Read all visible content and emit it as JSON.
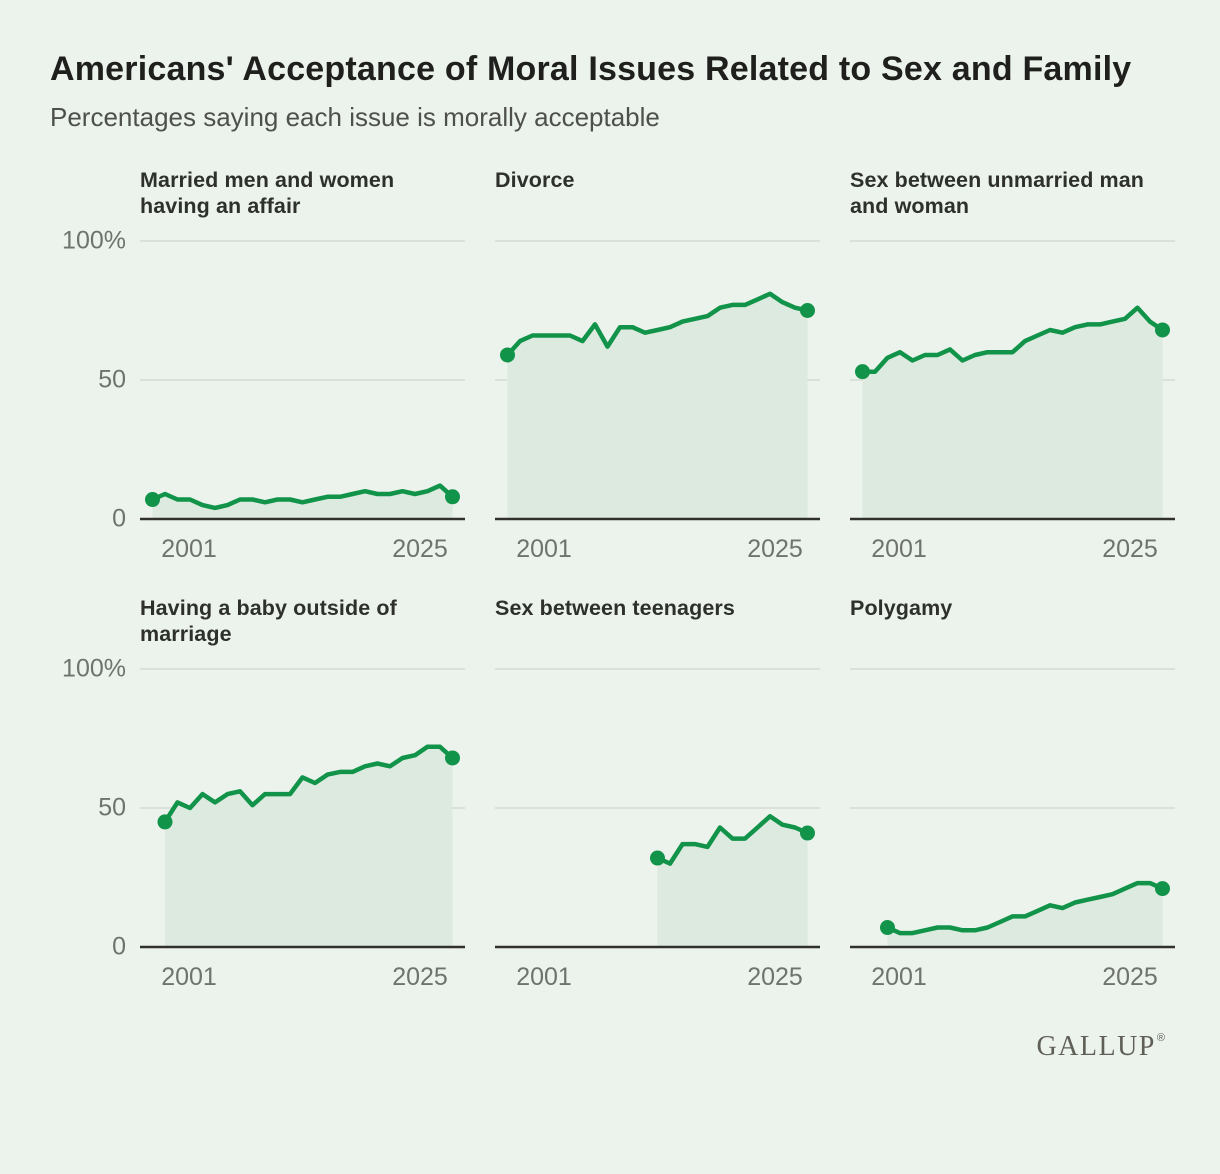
{
  "header": {
    "title": "Americans' Acceptance of Moral Issues Related to Sex and Family",
    "subtitle": "Percentages saying each issue is morally acceptable"
  },
  "axis": {
    "y_ticks": [
      "100%",
      "50",
      "0"
    ],
    "x_ticks": [
      "2001",
      "2025"
    ],
    "y_range": [
      0,
      100
    ],
    "x_domain": [
      2000,
      2026
    ]
  },
  "colors": {
    "background": "#ECF3EC",
    "line": "#12934A",
    "area": "#DCEADF",
    "gridline": "#D3DAD3",
    "axis_line": "#30312D",
    "tick_label": "#6F736E"
  },
  "chart_data": [
    {
      "type": "area",
      "title": "Married men and women having an affair",
      "start_year": 2001,
      "end_year": 2025,
      "values": [
        7,
        9,
        7,
        7,
        5,
        4,
        5,
        7,
        7,
        6,
        7,
        7,
        6,
        7,
        8,
        8,
        9,
        10,
        9,
        9,
        10,
        9,
        10,
        12,
        8
      ]
    },
    {
      "type": "area",
      "title": "Divorce",
      "start_year": 2001,
      "end_year": 2025,
      "values": [
        59,
        64,
        66,
        66,
        66,
        66,
        64,
        70,
        62,
        69,
        69,
        67,
        68,
        69,
        71,
        72,
        73,
        76,
        77,
        77,
        79,
        81,
        78,
        76,
        75
      ]
    },
    {
      "type": "area",
      "title": "Sex between unmarried man and woman",
      "start_year": 2001,
      "end_year": 2025,
      "values": [
        53,
        53,
        58,
        60,
        57,
        59,
        59,
        61,
        57,
        59,
        60,
        60,
        60,
        64,
        66,
        68,
        67,
        69,
        70,
        70,
        71,
        72,
        76,
        71,
        68
      ]
    },
    {
      "type": "area",
      "title": "Having a baby outside of marriage",
      "start_year": 2002,
      "end_year": 2025,
      "values": [
        45,
        52,
        50,
        55,
        52,
        55,
        56,
        51,
        55,
        55,
        55,
        61,
        59,
        62,
        63,
        63,
        65,
        66,
        65,
        68,
        69,
        72,
        72,
        68
      ]
    },
    {
      "type": "area",
      "title": "Sex between teenagers",
      "start_year": 2013,
      "end_year": 2025,
      "values": [
        32,
        30,
        37,
        37,
        36,
        43,
        39,
        39,
        43,
        47,
        44,
        43,
        41
      ]
    },
    {
      "type": "area",
      "title": "Polygamy",
      "start_year": 2003,
      "end_year": 2025,
      "values": [
        7,
        5,
        5,
        6,
        7,
        7,
        6,
        6,
        7,
        9,
        11,
        11,
        13,
        15,
        14,
        16,
        17,
        18,
        19,
        21,
        23,
        23,
        21
      ]
    }
  ],
  "footer": {
    "logo": "GALLUP",
    "registered": "®"
  }
}
